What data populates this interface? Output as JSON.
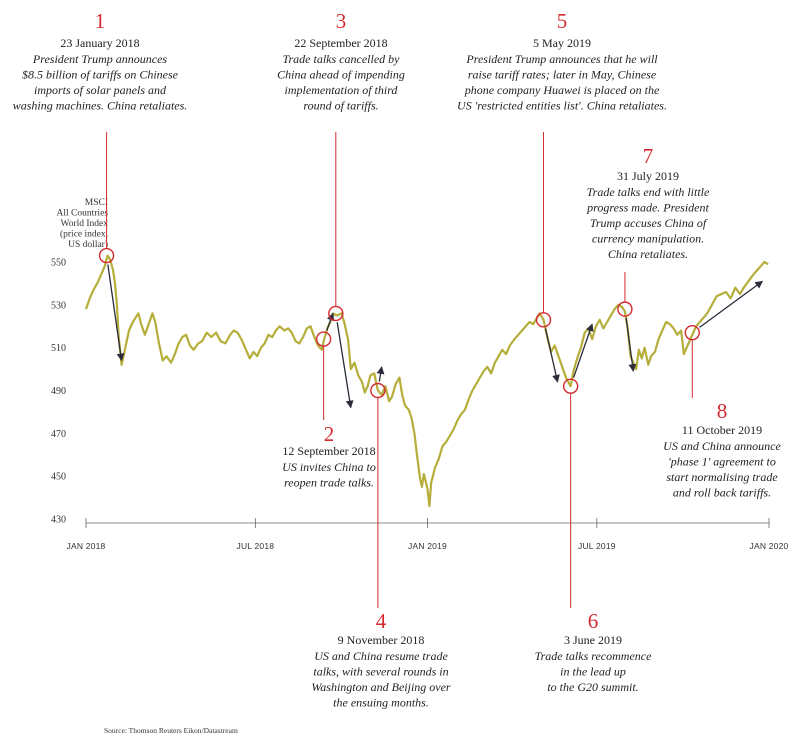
{
  "chart_data": {
    "type": "line",
    "ylabel_lines": [
      "MSCI",
      "All Countries",
      "World Index",
      "(price index,",
      "US dollar)"
    ],
    "yticks": [
      430,
      450,
      470,
      490,
      510,
      530,
      550
    ],
    "ylim": [
      430,
      555
    ],
    "xticks": [
      {
        "label": "JAN 2018",
        "date": "2018-01-01"
      },
      {
        "label": "JUL 2018",
        "date": "2018-07-01"
      },
      {
        "label": "JAN 2019",
        "date": "2019-01-01"
      },
      {
        "label": "JUL 2019",
        "date": "2019-07-01"
      },
      {
        "label": "JAN 2020",
        "date": "2020-01-01"
      }
    ],
    "xlim": [
      "2018-01-01",
      "2020-01-01"
    ],
    "line_color": "#b5ae3a",
    "marker_color": "#d42a2f",
    "arrow_color": "#2b2b3a",
    "series": [
      {
        "points": [
          [
            "2018-01-01",
            528
          ],
          [
            "2018-01-05",
            533
          ],
          [
            "2018-01-09",
            537
          ],
          [
            "2018-01-13",
            540
          ],
          [
            "2018-01-17",
            544
          ],
          [
            "2018-01-21",
            548
          ],
          [
            "2018-01-24",
            553
          ],
          [
            "2018-01-27",
            551
          ],
          [
            "2018-01-30",
            546
          ],
          [
            "2018-02-01",
            540
          ],
          [
            "2018-02-03",
            530
          ],
          [
            "2018-02-05",
            515
          ],
          [
            "2018-02-08",
            502
          ],
          [
            "2018-02-12",
            510
          ],
          [
            "2018-02-16",
            518
          ],
          [
            "2018-02-20",
            522
          ],
          [
            "2018-02-23",
            524
          ],
          [
            "2018-02-26",
            526
          ],
          [
            "2018-03-01",
            521
          ],
          [
            "2018-03-05",
            516
          ],
          [
            "2018-03-09",
            521
          ],
          [
            "2018-03-13",
            526
          ],
          [
            "2018-03-16",
            522
          ],
          [
            "2018-03-20",
            512
          ],
          [
            "2018-03-24",
            504
          ],
          [
            "2018-03-28",
            506
          ],
          [
            "2018-04-02",
            503
          ],
          [
            "2018-04-06",
            507
          ],
          [
            "2018-04-10",
            512
          ],
          [
            "2018-04-14",
            515
          ],
          [
            "2018-04-18",
            516
          ],
          [
            "2018-04-22",
            511
          ],
          [
            "2018-04-26",
            509
          ],
          [
            "2018-05-01",
            512
          ],
          [
            "2018-05-05",
            513
          ],
          [
            "2018-05-10",
            517
          ],
          [
            "2018-05-15",
            515
          ],
          [
            "2018-05-20",
            517
          ],
          [
            "2018-05-25",
            513
          ],
          [
            "2018-05-30",
            512
          ],
          [
            "2018-06-04",
            516
          ],
          [
            "2018-06-08",
            518
          ],
          [
            "2018-06-12",
            517
          ],
          [
            "2018-06-16",
            514
          ],
          [
            "2018-06-20",
            510
          ],
          [
            "2018-06-25",
            505
          ],
          [
            "2018-06-29",
            508
          ],
          [
            "2018-07-03",
            506
          ],
          [
            "2018-07-07",
            510
          ],
          [
            "2018-07-11",
            512
          ],
          [
            "2018-07-15",
            516
          ],
          [
            "2018-07-19",
            515
          ],
          [
            "2018-07-23",
            518
          ],
          [
            "2018-07-27",
            520
          ],
          [
            "2018-08-01",
            518
          ],
          [
            "2018-08-05",
            519
          ],
          [
            "2018-08-09",
            517
          ],
          [
            "2018-08-13",
            513
          ],
          [
            "2018-08-17",
            512
          ],
          [
            "2018-08-21",
            515
          ],
          [
            "2018-08-25",
            519
          ],
          [
            "2018-08-29",
            520
          ],
          [
            "2018-09-02",
            515
          ],
          [
            "2018-09-06",
            511
          ],
          [
            "2018-09-10",
            509
          ],
          [
            "2018-09-12",
            513
          ],
          [
            "2018-09-16",
            519
          ],
          [
            "2018-09-20",
            523
          ],
          [
            "2018-09-22",
            526
          ],
          [
            "2018-09-26",
            525
          ],
          [
            "2018-10-01",
            526
          ],
          [
            "2018-10-04",
            522
          ],
          [
            "2018-10-08",
            514
          ],
          [
            "2018-10-11",
            500
          ],
          [
            "2018-10-15",
            503
          ],
          [
            "2018-10-19",
            497
          ],
          [
            "2018-10-23",
            494
          ],
          [
            "2018-10-26",
            489
          ],
          [
            "2018-10-29",
            492
          ],
          [
            "2018-11-01",
            497
          ],
          [
            "2018-11-05",
            498
          ],
          [
            "2018-11-09",
            490
          ],
          [
            "2018-11-13",
            488
          ],
          [
            "2018-11-17",
            492
          ],
          [
            "2018-11-21",
            485
          ],
          [
            "2018-11-24",
            487
          ],
          [
            "2018-11-28",
            493
          ],
          [
            "2018-12-02",
            496
          ],
          [
            "2018-12-05",
            488
          ],
          [
            "2018-12-08",
            483
          ],
          [
            "2018-12-12",
            481
          ],
          [
            "2018-12-15",
            477
          ],
          [
            "2018-12-18",
            470
          ],
          [
            "2018-12-21",
            459
          ],
          [
            "2018-12-24",
            449
          ],
          [
            "2018-12-26",
            445
          ],
          [
            "2018-12-28",
            451
          ],
          [
            "2019-01-01",
            444
          ],
          [
            "2019-01-03",
            436
          ],
          [
            "2019-01-05",
            447
          ],
          [
            "2019-01-09",
            454
          ],
          [
            "2019-01-13",
            458
          ],
          [
            "2019-01-17",
            464
          ],
          [
            "2019-01-21",
            466
          ],
          [
            "2019-01-25",
            469
          ],
          [
            "2019-01-29",
            472
          ],
          [
            "2019-02-02",
            476
          ],
          [
            "2019-02-06",
            479
          ],
          [
            "2019-02-10",
            481
          ],
          [
            "2019-02-14",
            486
          ],
          [
            "2019-02-18",
            490
          ],
          [
            "2019-02-22",
            493
          ],
          [
            "2019-02-26",
            496
          ],
          [
            "2019-03-02",
            499
          ],
          [
            "2019-03-06",
            501
          ],
          [
            "2019-03-10",
            498
          ],
          [
            "2019-03-14",
            503
          ],
          [
            "2019-03-18",
            506
          ],
          [
            "2019-03-22",
            509
          ],
          [
            "2019-03-26",
            507
          ],
          [
            "2019-03-30",
            511
          ],
          [
            "2019-04-04",
            514
          ],
          [
            "2019-04-08",
            516
          ],
          [
            "2019-04-12",
            518
          ],
          [
            "2019-04-16",
            520
          ],
          [
            "2019-04-20",
            522
          ],
          [
            "2019-04-24",
            521
          ],
          [
            "2019-04-28",
            524
          ],
          [
            "2019-05-01",
            526
          ],
          [
            "2019-05-05",
            523
          ],
          [
            "2019-05-09",
            515
          ],
          [
            "2019-05-13",
            508
          ],
          [
            "2019-05-17",
            511
          ],
          [
            "2019-05-21",
            506
          ],
          [
            "2019-05-25",
            501
          ],
          [
            "2019-05-29",
            496
          ],
          [
            "2019-06-03",
            492
          ],
          [
            "2019-06-06",
            499
          ],
          [
            "2019-06-10",
            505
          ],
          [
            "2019-06-14",
            510
          ],
          [
            "2019-06-18",
            517
          ],
          [
            "2019-06-22",
            519
          ],
          [
            "2019-06-26",
            514
          ],
          [
            "2019-06-30",
            520
          ],
          [
            "2019-07-04",
            523
          ],
          [
            "2019-07-08",
            519
          ],
          [
            "2019-07-12",
            522
          ],
          [
            "2019-07-16",
            525
          ],
          [
            "2019-07-20",
            528
          ],
          [
            "2019-07-24",
            530
          ],
          [
            "2019-07-28",
            529
          ],
          [
            "2019-07-31",
            527
          ],
          [
            "2019-08-03",
            519
          ],
          [
            "2019-08-06",
            506
          ],
          [
            "2019-08-09",
            503
          ],
          [
            "2019-08-12",
            500
          ],
          [
            "2019-08-15",
            509
          ],
          [
            "2019-08-18",
            505
          ],
          [
            "2019-08-21",
            510
          ],
          [
            "2019-08-25",
            502
          ],
          [
            "2019-08-28",
            506
          ],
          [
            "2019-09-01",
            508
          ],
          [
            "2019-09-05",
            514
          ],
          [
            "2019-09-09",
            518
          ],
          [
            "2019-09-13",
            522
          ],
          [
            "2019-09-17",
            521
          ],
          [
            "2019-09-21",
            519
          ],
          [
            "2019-09-25",
            516
          ],
          [
            "2019-09-29",
            518
          ],
          [
            "2019-10-02",
            507
          ],
          [
            "2019-10-06",
            511
          ],
          [
            "2019-10-11",
            516
          ],
          [
            "2019-10-15",
            520
          ],
          [
            "2019-10-19",
            522
          ],
          [
            "2019-10-23",
            524
          ],
          [
            "2019-10-27",
            526
          ],
          [
            "2019-11-01",
            530
          ],
          [
            "2019-11-06",
            534
          ],
          [
            "2019-11-11",
            535
          ],
          [
            "2019-11-16",
            536
          ],
          [
            "2019-11-21",
            533
          ],
          [
            "2019-11-26",
            538
          ],
          [
            "2019-12-01",
            535
          ],
          [
            "2019-12-05",
            538
          ],
          [
            "2019-12-10",
            541
          ],
          [
            "2019-12-15",
            544
          ],
          [
            "2019-12-19",
            546
          ],
          [
            "2019-12-23",
            548
          ],
          [
            "2019-12-27",
            550
          ],
          [
            "2019-12-31",
            549
          ]
        ]
      }
    ],
    "annotations": [
      {
        "num": "1",
        "date_label": "23 January 2018",
        "text": [
          "President Trump announces",
          "$8.5 billion of tariffs on Chinese",
          "imports of solar panels and",
          "washing machines. China retaliates."
        ],
        "point": [
          "2018-01-23",
          553
        ],
        "arrow_to": [
          "2018-02-08",
          504
        ]
      },
      {
        "num": "2",
        "date_label": "12 September 2018",
        "text": [
          "US invites China to",
          "reopen trade talks."
        ],
        "point": [
          "2018-09-12",
          514
        ],
        "arrow_to": [
          "2018-09-22",
          526
        ]
      },
      {
        "num": "3",
        "date_label": "22 September 2018",
        "text": [
          "Trade talks cancelled by",
          "China ahead of impending",
          "implementation of third",
          "round of tariffs."
        ],
        "point": [
          "2018-09-25",
          526
        ],
        "arrow_to": [
          "2018-10-11",
          482
        ]
      },
      {
        "num": "4",
        "date_label": "9 November 2018",
        "text": [
          "US and China resume trade",
          "talks, with several rounds in",
          "Washington and Beijing over",
          "the ensuing months."
        ],
        "point": [
          "2018-11-09",
          490
        ],
        "arrow_to": [
          "2018-11-13",
          501
        ]
      },
      {
        "num": "5",
        "date_label": "5 May 2019",
        "text": [
          "President Trump announces that he will",
          "raise tariff rates; later in May, Chinese",
          "phone company Huawei is placed on the",
          "US 'restricted entities list'. China retaliates."
        ],
        "point": [
          "2019-05-05",
          523
        ],
        "arrow_to": [
          "2019-05-20",
          494
        ]
      },
      {
        "num": "6",
        "date_label": "3 June 2019",
        "text": [
          "Trade talks recommence",
          "in the lead up",
          "to the G20 summit."
        ],
        "point": [
          "2019-06-03",
          492
        ],
        "arrow_to": [
          "2019-06-26",
          521
        ]
      },
      {
        "num": "7",
        "date_label": "31 July 2019",
        "text": [
          "Trade talks end with little",
          "progress made. President",
          "Trump accuses China of",
          "currency manipulation.",
          "China retaliates."
        ],
        "point": [
          "2019-07-31",
          528
        ],
        "arrow_to": [
          "2019-08-09",
          499
        ]
      },
      {
        "num": "8",
        "date_label": "11 October 2019",
        "text": [
          "US and China announce",
          "'phase 1' agreement to",
          "start normalising trade",
          "and roll back tariffs."
        ],
        "point": [
          "2019-10-11",
          517
        ],
        "arrow_to": [
          "2019-12-25",
          541
        ]
      }
    ]
  },
  "source": "Source: Thomson Reuters Eikon/Datastream"
}
